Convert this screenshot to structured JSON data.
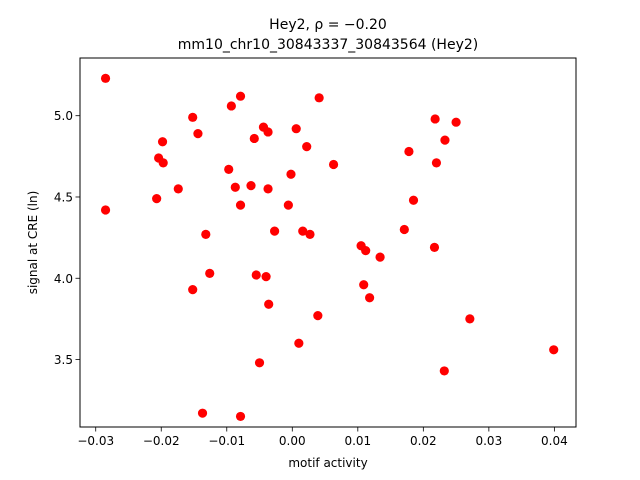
{
  "chart_data": {
    "type": "scatter",
    "title_line1": "Hey2, ρ = −0.20",
    "title_line2": "mm10_chr10_30843337_30843564 (Hey2)",
    "xlabel": "motif activity",
    "ylabel": "signal at CRE (ln)",
    "xlim": [
      -0.0324,
      0.0433
    ],
    "ylim": [
      3.085,
      5.355
    ],
    "xticks": [
      -0.03,
      -0.02,
      -0.01,
      0.0,
      0.01,
      0.02,
      0.03,
      0.04
    ],
    "xtick_labels": [
      "−0.03",
      "−0.02",
      "−0.01",
      "0.00",
      "0.01",
      "0.02",
      "0.03",
      "0.04"
    ],
    "yticks": [
      3.5,
      4.0,
      4.5,
      5.0
    ],
    "ytick_labels": [
      "3.5",
      "4.0",
      "4.5",
      "5.0"
    ],
    "grid": false,
    "marker_color": "#ff0000",
    "points": [
      {
        "x": -0.0285,
        "y": 5.23
      },
      {
        "x": -0.0285,
        "y": 4.42
      },
      {
        "x": -0.0207,
        "y": 4.49
      },
      {
        "x": -0.0204,
        "y": 4.74
      },
      {
        "x": -0.0198,
        "y": 4.84
      },
      {
        "x": -0.0197,
        "y": 4.71
      },
      {
        "x": -0.0174,
        "y": 4.55
      },
      {
        "x": -0.0152,
        "y": 4.99
      },
      {
        "x": -0.0144,
        "y": 4.89
      },
      {
        "x": -0.0152,
        "y": 3.93
      },
      {
        "x": -0.0132,
        "y": 4.27
      },
      {
        "x": -0.0126,
        "y": 4.03
      },
      {
        "x": -0.0137,
        "y": 3.17
      },
      {
        "x": -0.0097,
        "y": 4.67
      },
      {
        "x": -0.0093,
        "y": 5.06
      },
      {
        "x": -0.0087,
        "y": 4.56
      },
      {
        "x": -0.0079,
        "y": 5.12
      },
      {
        "x": -0.0079,
        "y": 4.45
      },
      {
        "x": -0.0079,
        "y": 3.15
      },
      {
        "x": -0.0063,
        "y": 4.57
      },
      {
        "x": -0.0058,
        "y": 4.86
      },
      {
        "x": -0.0055,
        "y": 4.02
      },
      {
        "x": -0.005,
        "y": 3.48
      },
      {
        "x": -0.0044,
        "y": 4.93
      },
      {
        "x": -0.004,
        "y": 4.01
      },
      {
        "x": -0.0037,
        "y": 4.9
      },
      {
        "x": -0.0037,
        "y": 4.55
      },
      {
        "x": -0.0036,
        "y": 3.84
      },
      {
        "x": -0.0027,
        "y": 4.29
      },
      {
        "x": -0.0006,
        "y": 4.45
      },
      {
        "x": -0.0002,
        "y": 4.64
      },
      {
        "x": 0.0006,
        "y": 4.92
      },
      {
        "x": 0.001,
        "y": 3.6
      },
      {
        "x": 0.0016,
        "y": 4.29
      },
      {
        "x": 0.0022,
        "y": 4.81
      },
      {
        "x": 0.0027,
        "y": 4.27
      },
      {
        "x": 0.0039,
        "y": 3.77
      },
      {
        "x": 0.0041,
        "y": 5.11
      },
      {
        "x": 0.0063,
        "y": 4.7
      },
      {
        "x": 0.0105,
        "y": 4.2
      },
      {
        "x": 0.0109,
        "y": 3.96
      },
      {
        "x": 0.0112,
        "y": 4.17
      },
      {
        "x": 0.0118,
        "y": 3.88
      },
      {
        "x": 0.0134,
        "y": 4.13
      },
      {
        "x": 0.0171,
        "y": 4.3
      },
      {
        "x": 0.0178,
        "y": 4.78
      },
      {
        "x": 0.0185,
        "y": 4.48
      },
      {
        "x": 0.0217,
        "y": 4.19
      },
      {
        "x": 0.0218,
        "y": 4.98
      },
      {
        "x": 0.022,
        "y": 4.71
      },
      {
        "x": 0.0233,
        "y": 4.85
      },
      {
        "x": 0.0232,
        "y": 3.43
      },
      {
        "x": 0.025,
        "y": 4.96
      },
      {
        "x": 0.0271,
        "y": 3.75
      },
      {
        "x": 0.0399,
        "y": 3.56
      }
    ]
  }
}
